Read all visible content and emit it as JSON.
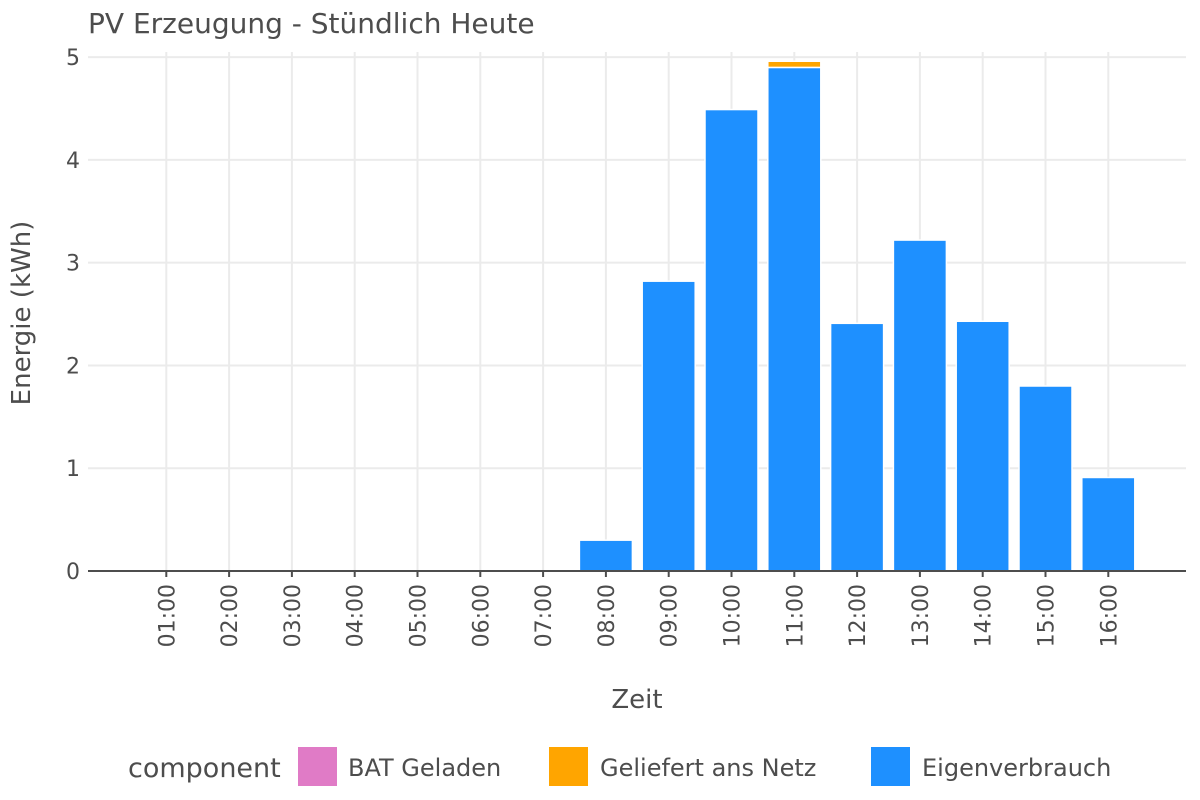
{
  "chart_data": {
    "type": "bar",
    "stacked": true,
    "title": "PV Erzeugung - Stündlich Heute",
    "xlabel": "Zeit",
    "ylabel": "Energie (kWh)",
    "ylim": [
      0,
      5.05
    ],
    "yticks": [
      "0",
      "1",
      "2",
      "3",
      "4",
      "5"
    ],
    "categories": [
      "01:00",
      "02:00",
      "03:00",
      "04:00",
      "05:00",
      "06:00",
      "07:00",
      "08:00",
      "09:00",
      "10:00",
      "11:00",
      "12:00",
      "13:00",
      "14:00",
      "15:00",
      "16:00"
    ],
    "series": [
      {
        "name": "Eigenverbrauch",
        "color": "#1e90ff",
        "values": [
          0,
          0,
          0,
          0,
          0,
          0,
          0,
          0.3,
          2.82,
          4.49,
          4.9,
          2.41,
          3.22,
          2.43,
          1.8,
          0.91
        ]
      },
      {
        "name": "Geliefert ans Netz",
        "color": "#ffa500",
        "values": [
          0,
          0,
          0,
          0,
          0,
          0,
          0,
          0,
          0,
          0,
          0.06,
          0,
          0,
          0,
          0,
          0
        ]
      },
      {
        "name": "BAT Geladen",
        "color": "#e07bc6",
        "values": [
          0,
          0,
          0,
          0,
          0,
          0,
          0,
          0,
          0,
          0,
          0,
          0,
          0,
          0,
          0,
          0
        ]
      }
    ],
    "legend": {
      "title": "component",
      "position": "bottom",
      "items": [
        {
          "label": "BAT Geladen",
          "color": "#e07bc6"
        },
        {
          "label": "Geliefert ans Netz",
          "color": "#ffa500"
        },
        {
          "label": "Eigenverbrauch",
          "color": "#1e90ff"
        }
      ]
    },
    "grid": true
  }
}
